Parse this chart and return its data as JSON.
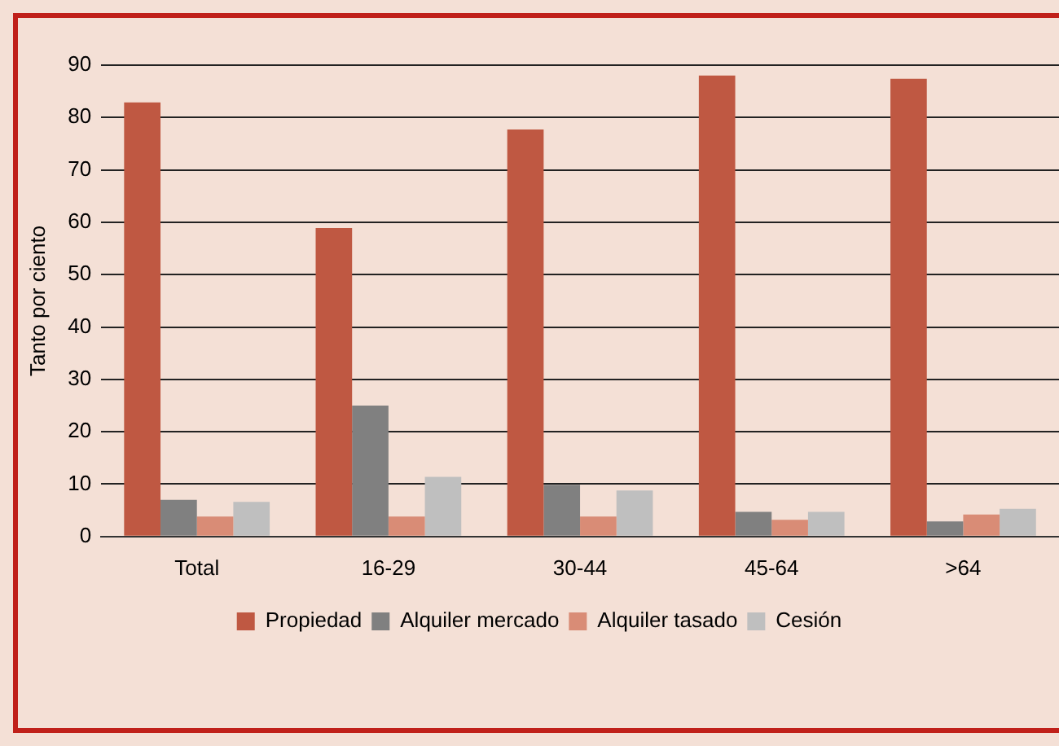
{
  "chart_data": {
    "type": "bar",
    "ylabel": "Tanto por ciento",
    "categories": [
      "Total",
      "16-29",
      "30-44",
      "45-64",
      ">64"
    ],
    "series": [
      {
        "name": "Propiedad",
        "color": "#bf5842",
        "values": [
          82.9,
          58.9,
          77.7,
          88.0,
          87.4
        ]
      },
      {
        "name": "Alquiler mercado",
        "color": "#808080",
        "values": [
          7.0,
          25.0,
          9.9,
          4.7,
          2.9
        ]
      },
      {
        "name": "Alquiler tasado",
        "color": "#d98c76",
        "values": [
          3.8,
          3.8,
          3.8,
          3.2,
          4.2
        ]
      },
      {
        "name": "Cesión",
        "color": "#bfbfbf",
        "values": [
          6.6,
          11.4,
          8.8,
          4.7,
          5.3
        ]
      }
    ],
    "ylim": [
      0,
      90
    ],
    "yticks": [
      0,
      10,
      20,
      30,
      40,
      50,
      60,
      70,
      80,
      90
    ],
    "grid": "y",
    "legend": "bottom"
  }
}
